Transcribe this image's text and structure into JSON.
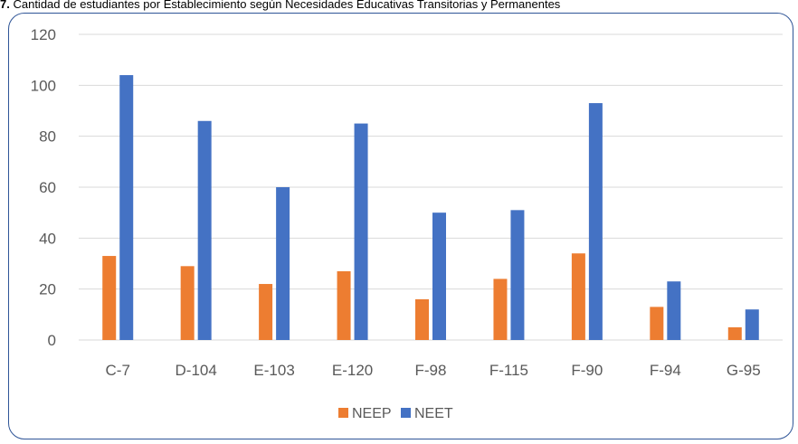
{
  "caption": {
    "prefix": "7.",
    "text": "Cantidad de estudiantes por Establecimiento según Necesidades Educativas Transitorias y Permanentes"
  },
  "chart_data": {
    "type": "bar",
    "categories": [
      "C-7",
      "D-104",
      "E-103",
      "E-120",
      "F-98",
      "F-115",
      "F-90",
      "F-94",
      "G-95"
    ],
    "series": [
      {
        "name": "NEEP",
        "color": "#ed7d31",
        "values": [
          33,
          29,
          22,
          27,
          16,
          24,
          34,
          13,
          5
        ]
      },
      {
        "name": "NEET",
        "color": "#4472c4",
        "values": [
          104,
          86,
          60,
          85,
          50,
          51,
          93,
          23,
          12
        ]
      }
    ],
    "ylim": [
      0,
      120
    ],
    "yticks": [
      0,
      20,
      40,
      60,
      80,
      100,
      120
    ],
    "grid": true,
    "legend": "bottom-center",
    "gridColor": "#d9d9d9"
  }
}
